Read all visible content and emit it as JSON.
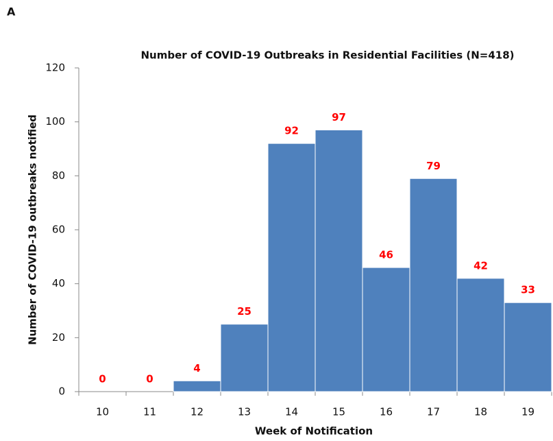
{
  "chart_data": {
    "type": "bar",
    "panel_label": "A",
    "title": "Number of COVID-19 Outbreaks in Residential Facilities (N=418)",
    "x_label": "Week of Notification",
    "y_label": "Number of COVID-19 outbreaks notified",
    "categories": [
      "10",
      "11",
      "12",
      "13",
      "14",
      "15",
      "16",
      "17",
      "18",
      "19"
    ],
    "values": [
      0,
      0,
      4,
      25,
      92,
      97,
      46,
      79,
      42,
      33
    ],
    "color": "#4f81bd",
    "label_color": "#ff0000",
    "ylim": [
      0,
      120
    ],
    "yticks": [
      0,
      20,
      40,
      60,
      80,
      100,
      120
    ],
    "grid": false
  }
}
